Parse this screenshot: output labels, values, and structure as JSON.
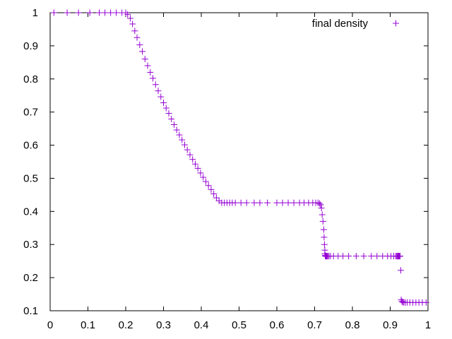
{
  "chart_data": {
    "type": "scatter",
    "title": "",
    "xlabel": "",
    "ylabel": "",
    "xlim": [
      0,
      1
    ],
    "ylim": [
      0.1,
      1
    ],
    "xticks": [
      "0",
      "0.1",
      "0.2",
      "0.3",
      "0.4",
      "0.5",
      "0.6",
      "0.7",
      "0.8",
      "0.9",
      "1"
    ],
    "yticks": [
      "0.1",
      "0.2",
      "0.3",
      "0.4",
      "0.5",
      "0.6",
      "0.7",
      "0.8",
      "0.9",
      "1"
    ],
    "grid": false,
    "legend_position": "top-right",
    "marker": "plus",
    "color": "#9400d3",
    "series": [
      {
        "name": "final density",
        "x": [
          0.01,
          0.045,
          0.075,
          0.105,
          0.13,
          0.145,
          0.16,
          0.175,
          0.19,
          0.2,
          0.205,
          0.212,
          0.218,
          0.224,
          0.23,
          0.237,
          0.244,
          0.251,
          0.258,
          0.265,
          0.272,
          0.279,
          0.286,
          0.293,
          0.3,
          0.307,
          0.314,
          0.321,
          0.328,
          0.335,
          0.342,
          0.349,
          0.356,
          0.363,
          0.37,
          0.377,
          0.384,
          0.391,
          0.398,
          0.405,
          0.412,
          0.419,
          0.426,
          0.433,
          0.44,
          0.447,
          0.454,
          0.461,
          0.468,
          0.475,
          0.482,
          0.49,
          0.505,
          0.52,
          0.54,
          0.555,
          0.575,
          0.6,
          0.615,
          0.63,
          0.645,
          0.66,
          0.672,
          0.684,
          0.695,
          0.703,
          0.709,
          0.713,
          0.716,
          0.718,
          0.72,
          0.722,
          0.724,
          0.725,
          0.726,
          0.727,
          0.727,
          0.728,
          0.728,
          0.729,
          0.729,
          0.73,
          0.73,
          0.731,
          0.732,
          0.733,
          0.735,
          0.738,
          0.742,
          0.75,
          0.762,
          0.775,
          0.79,
          0.81,
          0.83,
          0.85,
          0.865,
          0.88,
          0.893,
          0.902,
          0.909,
          0.914,
          0.917,
          0.919,
          0.92,
          0.921,
          0.922,
          0.923,
          0.924,
          0.925,
          0.926,
          0.926,
          0.928,
          0.929,
          0.931,
          0.933,
          0.936,
          0.94,
          0.945,
          0.952,
          0.96,
          0.968,
          0.976,
          0.985,
          0.995
        ],
        "y": [
          1.0,
          1.0,
          1.0,
          1.0,
          1.0,
          1.0,
          1.0,
          1.0,
          1.0,
          1.0,
          0.995,
          0.983,
          0.966,
          0.945,
          0.925,
          0.903,
          0.883,
          0.86,
          0.84,
          0.82,
          0.802,
          0.783,
          0.764,
          0.746,
          0.728,
          0.712,
          0.696,
          0.679,
          0.662,
          0.646,
          0.631,
          0.616,
          0.601,
          0.586,
          0.571,
          0.557,
          0.543,
          0.53,
          0.516,
          0.503,
          0.49,
          0.478,
          0.466,
          0.453,
          0.441,
          0.432,
          0.426,
          0.426,
          0.426,
          0.426,
          0.426,
          0.426,
          0.426,
          0.426,
          0.426,
          0.426,
          0.426,
          0.426,
          0.426,
          0.426,
          0.426,
          0.426,
          0.426,
          0.426,
          0.426,
          0.426,
          0.426,
          0.424,
          0.42,
          0.41,
          0.39,
          0.37,
          0.345,
          0.322,
          0.3,
          0.283,
          0.272,
          0.267,
          0.266,
          0.265,
          0.265,
          0.265,
          0.265,
          0.265,
          0.265,
          0.265,
          0.265,
          0.265,
          0.265,
          0.265,
          0.265,
          0.265,
          0.265,
          0.265,
          0.265,
          0.265,
          0.265,
          0.265,
          0.265,
          0.265,
          0.265,
          0.265,
          0.265,
          0.265,
          0.265,
          0.265,
          0.265,
          0.265,
          0.265,
          0.265,
          0.265,
          0.265,
          0.222,
          0.133,
          0.128,
          0.126,
          0.125,
          0.125,
          0.125,
          0.125,
          0.125,
          0.125,
          0.125,
          0.125,
          0.125
        ]
      }
    ]
  }
}
